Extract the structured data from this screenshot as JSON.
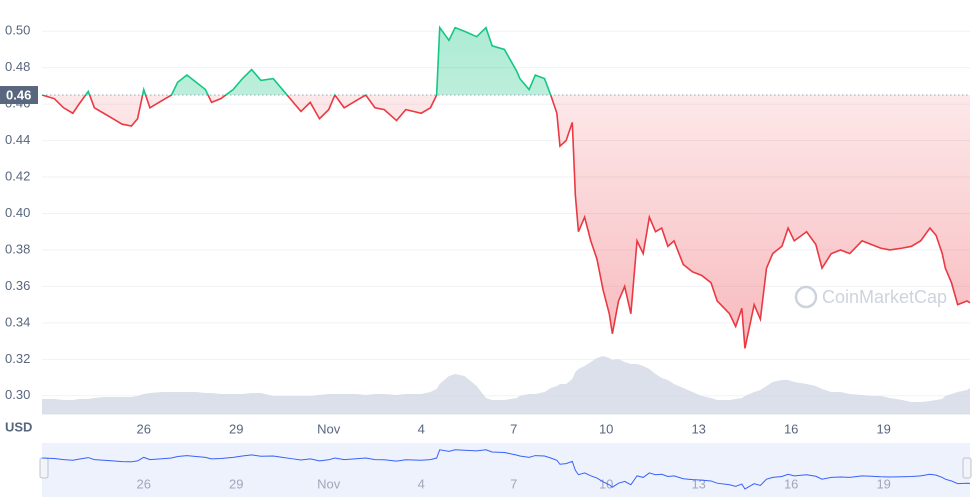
{
  "chart_data": {
    "type": "line",
    "currency": "USD",
    "watermark": "CoinMarketCap",
    "x": [
      22.7,
      23.1,
      23.4,
      23.7,
      23.9,
      24.2,
      24.4,
      24.7,
      25.0,
      25.3,
      25.6,
      25.8,
      26.0,
      26.2,
      26.6,
      26.9,
      27.1,
      27.4,
      27.7,
      28.0,
      28.2,
      28.5,
      28.9,
      29.2,
      29.5,
      29.8,
      30.2,
      30.5,
      30.8,
      31.1,
      31.4,
      31.7,
      32.0,
      32.2,
      32.5,
      32.9,
      33.2,
      33.5,
      33.8,
      34.2,
      34.5,
      35.0,
      35.3,
      35.5,
      35.6,
      35.9,
      36.1,
      36.4,
      36.8,
      37.1,
      37.3,
      37.7,
      38.1,
      38.2,
      38.5,
      38.7,
      39.0,
      39.2,
      39.4,
      39.5,
      39.7,
      39.9,
      40.0,
      40.1,
      40.3,
      40.5,
      40.7,
      40.9,
      41.1,
      41.2,
      41.4,
      41.6,
      41.8,
      42.0,
      42.2,
      42.4,
      42.6,
      42.8,
      43.0,
      43.2,
      43.5,
      43.8,
      44.1,
      44.4,
      44.6,
      45.0,
      45.2,
      45.4,
      45.5,
      45.8,
      46.0,
      46.2,
      46.4,
      46.7,
      46.9,
      47.1,
      47.5,
      47.8,
      48.0,
      48.3,
      48.6,
      48.9,
      49.3,
      49.6,
      49.9,
      50.2,
      50.6,
      50.9,
      51.2,
      51.5,
      51.7,
      51.9,
      52.0,
      52.2,
      52.4,
      52.7,
      52.8
    ],
    "values": [
      0.465,
      0.463,
      0.458,
      0.455,
      0.46,
      0.467,
      0.458,
      0.455,
      0.452,
      0.449,
      0.448,
      0.452,
      0.468,
      0.458,
      0.462,
      0.465,
      0.472,
      0.476,
      0.472,
      0.468,
      0.461,
      0.463,
      0.468,
      0.474,
      0.479,
      0.473,
      0.474,
      0.468,
      0.462,
      0.456,
      0.461,
      0.452,
      0.457,
      0.465,
      0.458,
      0.462,
      0.465,
      0.458,
      0.457,
      0.451,
      0.457,
      0.455,
      0.458,
      0.465,
      0.502,
      0.495,
      0.502,
      0.5,
      0.497,
      0.502,
      0.492,
      0.49,
      0.478,
      0.474,
      0.468,
      0.476,
      0.474,
      0.465,
      0.455,
      0.437,
      0.44,
      0.45,
      0.41,
      0.39,
      0.398,
      0.385,
      0.375,
      0.358,
      0.345,
      0.334,
      0.352,
      0.36,
      0.345,
      0.385,
      0.378,
      0.398,
      0.39,
      0.392,
      0.382,
      0.385,
      0.372,
      0.368,
      0.366,
      0.362,
      0.352,
      0.345,
      0.338,
      0.348,
      0.326,
      0.35,
      0.342,
      0.37,
      0.378,
      0.382,
      0.392,
      0.385,
      0.39,
      0.383,
      0.37,
      0.378,
      0.38,
      0.378,
      0.385,
      0.383,
      0.381,
      0.38,
      0.381,
      0.382,
      0.385,
      0.392,
      0.388,
      0.378,
      0.37,
      0.362,
      0.35,
      0.352,
      0.351
    ],
    "volume": [
      15,
      15,
      14,
      14,
      15,
      15,
      16,
      17,
      17,
      17,
      17,
      18,
      20,
      21,
      22,
      22,
      22,
      22,
      22,
      21,
      21,
      20,
      20,
      20,
      21,
      21,
      18,
      18,
      18,
      18,
      18,
      19,
      20,
      20,
      20,
      20,
      19,
      20,
      20,
      19,
      20,
      20,
      22,
      25,
      30,
      38,
      40,
      38,
      28,
      16,
      14,
      14,
      16,
      18,
      20,
      20,
      22,
      26,
      28,
      30,
      30,
      35,
      42,
      45,
      48,
      52,
      56,
      58,
      56,
      54,
      55,
      52,
      50,
      50,
      48,
      45,
      40,
      36,
      34,
      30,
      26,
      22,
      18,
      16,
      14,
      14,
      15,
      16,
      18,
      22,
      24,
      28,
      32,
      34,
      34,
      32,
      30,
      28,
      25,
      22,
      22,
      20,
      19,
      18,
      18,
      16,
      14,
      12,
      12,
      13,
      14,
      15,
      18,
      20,
      22,
      24,
      26
    ],
    "volume_lim": [
      0,
      100
    ],
    "reference": {
      "value": 0.465,
      "label": "0.46"
    },
    "up_color": "#16c784",
    "down_color": "#ea3943",
    "navigator_color": "#3861fb",
    "xlim": [
      22.7,
      52.8
    ],
    "xticks": [
      {
        "value": 26,
        "label": "26"
      },
      {
        "value": 29,
        "label": "29"
      },
      {
        "value": 32,
        "label": "Nov"
      },
      {
        "value": 35,
        "label": "4"
      },
      {
        "value": 38,
        "label": "7"
      },
      {
        "value": 41,
        "label": "10"
      },
      {
        "value": 44,
        "label": "13"
      },
      {
        "value": 47,
        "label": "16"
      },
      {
        "value": 50,
        "label": "19"
      }
    ],
    "ylim": [
      0.29,
      0.51
    ],
    "yticks": [
      {
        "value": 0.3,
        "label": "0.30"
      },
      0.32,
      0.34,
      0.36,
      0.38,
      {
        "value": 0.4,
        "label": "0.40"
      },
      0.42,
      0.44,
      0.46,
      0.48,
      {
        "value": 0.5,
        "label": "0.50"
      }
    ],
    "grid": true
  }
}
